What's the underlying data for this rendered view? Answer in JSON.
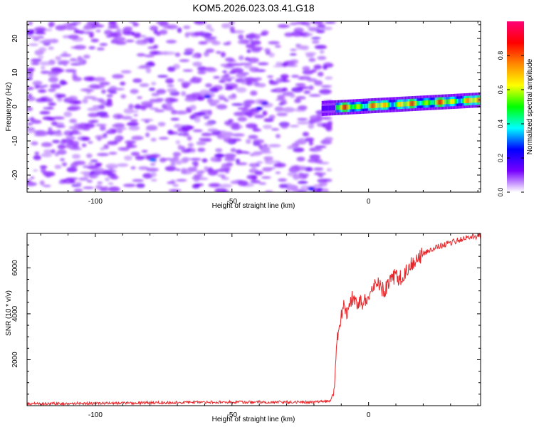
{
  "title": "KOM5.2026.023.03.41.G18",
  "chart_data": [
    {
      "type": "heatmap",
      "xlabel": "Height of straight line (km)",
      "ylabel": "Frequency (Hz)",
      "xlim": [
        -125,
        41
      ],
      "ylim": [
        -25,
        25
      ],
      "x_ticks": [
        -100,
        -50,
        0
      ],
      "y_ticks": [
        -20,
        -10,
        0,
        10,
        20
      ],
      "colorbar": {
        "label": "Normalized spectral amplitude",
        "range": [
          0,
          1
        ],
        "ticks": [
          "0.0",
          "0.2",
          "0.4",
          "0.6",
          "0.8"
        ],
        "tick_values": [
          0,
          0.2,
          0.4,
          0.6,
          0.8
        ],
        "colors": [
          "#ffffff",
          "#7700ff",
          "#0000ff",
          "#00ffff",
          "#00ff00",
          "#ffff00",
          "#ff8800",
          "#ff0000",
          "#ff0077"
        ]
      },
      "noise_region": {
        "x_range": [
          -125,
          -14
        ],
        "freq_range": [
          -25,
          25
        ],
        "amplitude": "0.0-0.3"
      },
      "signal_tone": {
        "x_range": [
          -17,
          41
        ],
        "freq_start_hz": -0.5,
        "freq_end_hz": 2.0,
        "amplitude": "0.3-1.0"
      }
    },
    {
      "type": "line",
      "xlabel": "Height of straight line (km)",
      "ylabel": "SNR (10 * v/v)",
      "xlim": [
        -125,
        41
      ],
      "ylim": [
        0,
        7500
      ],
      "x_ticks": [
        -100,
        -50,
        0
      ],
      "y_ticks": [
        2000,
        4000,
        6000
      ],
      "color": "#e8262a",
      "series": [
        {
          "name": "SNR",
          "x": [
            -125,
            -100,
            -60,
            -40,
            -20,
            -14,
            -12.5,
            -12,
            -11.5,
            -11,
            -10,
            -9,
            -8,
            -6,
            -4,
            -2,
            0,
            3,
            6,
            9,
            12,
            16,
            20,
            25,
            30,
            35,
            41
          ],
          "y": [
            80,
            100,
            150,
            160,
            150,
            200,
            700,
            2200,
            3300,
            3000,
            4000,
            4300,
            4100,
            4700,
            4400,
            4500,
            4900,
            5300,
            5000,
            5600,
            5600,
            6200,
            6600,
            6900,
            7100,
            7300,
            7400
          ]
        }
      ]
    }
  ]
}
